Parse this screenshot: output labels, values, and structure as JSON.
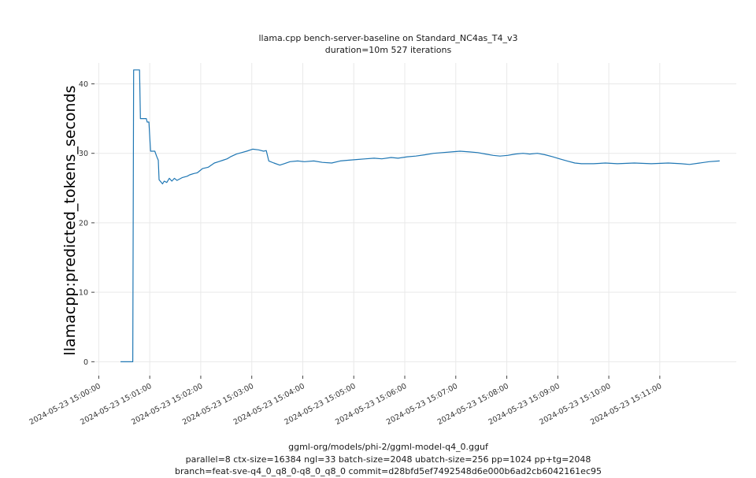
{
  "chart_data": {
    "type": "line",
    "title": "llama.cpp bench-server-baseline on Standard_NC4as_T4_v3",
    "subtitle": "duration=10m 527 iterations",
    "ylabel": "llamacpp:predicted_tokens_seconds",
    "xlabel": "",
    "footnotes": [
      "ggml-org/models/phi-2/ggml-model-q4_0.gguf",
      "parallel=8 ctx-size=16384 ngl=33 batch-size=2048 ubatch-size=256 pp=1024 pp+tg=2048",
      "branch=feat-sve-q4_0_q8_0-q8_0_q8_0 commit=d28bfd5ef7492548d6e000b6ad2cb6042161ec95"
    ],
    "grid": true,
    "legend": null,
    "line_color": "#1f77b4",
    "grid_color": "#e9e9e9",
    "tick_color": "#444444",
    "text_color": "#333333",
    "x_unit": "seconds after 2024-05-23 15:00:00",
    "xlim": [
      -5,
      750
    ],
    "ylim": [
      -2,
      43
    ],
    "y_ticks": [
      0,
      10,
      20,
      30,
      40
    ],
    "x_ticks": [
      {
        "seconds": 0,
        "label": "2024-05-23 15:00:00"
      },
      {
        "seconds": 60,
        "label": "2024-05-23 15:01:00"
      },
      {
        "seconds": 120,
        "label": "2024-05-23 15:02:00"
      },
      {
        "seconds": 180,
        "label": "2024-05-23 15:03:00"
      },
      {
        "seconds": 240,
        "label": "2024-05-23 15:04:00"
      },
      {
        "seconds": 300,
        "label": "2024-05-23 15:05:00"
      },
      {
        "seconds": 360,
        "label": "2024-05-23 15:06:00"
      },
      {
        "seconds": 420,
        "label": "2024-05-23 15:07:00"
      },
      {
        "seconds": 480,
        "label": "2024-05-23 15:08:00"
      },
      {
        "seconds": 540,
        "label": "2024-05-23 15:09:00"
      },
      {
        "seconds": 600,
        "label": "2024-05-23 15:10:00"
      },
      {
        "seconds": 660,
        "label": "2024-05-23 15:11:00"
      }
    ],
    "series": [
      {
        "name": "llamacpp:predicted_tokens_seconds",
        "points": [
          [
            26,
            0
          ],
          [
            40,
            0
          ],
          [
            41,
            42
          ],
          [
            48,
            42
          ],
          [
            49,
            35
          ],
          [
            56,
            35
          ],
          [
            57,
            34.5
          ],
          [
            59,
            34.5
          ],
          [
            61,
            30.3
          ],
          [
            66,
            30.3
          ],
          [
            68,
            29.6
          ],
          [
            70,
            29
          ],
          [
            71,
            26.2
          ],
          [
            75,
            25.6
          ],
          [
            77,
            26
          ],
          [
            80,
            25.8
          ],
          [
            83,
            26.4
          ],
          [
            86,
            26
          ],
          [
            89,
            26.4
          ],
          [
            92,
            26.1
          ],
          [
            98,
            26.5
          ],
          [
            104,
            26.7
          ],
          [
            107,
            26.9
          ],
          [
            112,
            27.1
          ],
          [
            116,
            27.2
          ],
          [
            122,
            27.8
          ],
          [
            129,
            28
          ],
          [
            136,
            28.6
          ],
          [
            141,
            28.8
          ],
          [
            146,
            29
          ],
          [
            151,
            29.2
          ],
          [
            155,
            29.5
          ],
          [
            162,
            29.9
          ],
          [
            168,
            30.1
          ],
          [
            174,
            30.3
          ],
          [
            181,
            30.6
          ],
          [
            188,
            30.5
          ],
          [
            194,
            30.3
          ],
          [
            197,
            30.4
          ],
          [
            200,
            28.9
          ],
          [
            206,
            28.6
          ],
          [
            213,
            28.3
          ],
          [
            218,
            28.5
          ],
          [
            225,
            28.8
          ],
          [
            234,
            28.9
          ],
          [
            242,
            28.8
          ],
          [
            253,
            28.9
          ],
          [
            263,
            28.7
          ],
          [
            274,
            28.6
          ],
          [
            284,
            28.9
          ],
          [
            293,
            29
          ],
          [
            303,
            29.1
          ],
          [
            314,
            29.2
          ],
          [
            324,
            29.3
          ],
          [
            333,
            29.2
          ],
          [
            344,
            29.4
          ],
          [
            352,
            29.3
          ],
          [
            363,
            29.5
          ],
          [
            373,
            29.6
          ],
          [
            384,
            29.8
          ],
          [
            394,
            30
          ],
          [
            404,
            30.1
          ],
          [
            415,
            30.2
          ],
          [
            425,
            30.3
          ],
          [
            436,
            30.2
          ],
          [
            446,
            30.1
          ],
          [
            455,
            29.9
          ],
          [
            464,
            29.7
          ],
          [
            472,
            29.6
          ],
          [
            481,
            29.7
          ],
          [
            490,
            29.9
          ],
          [
            499,
            30
          ],
          [
            507,
            29.9
          ],
          [
            516,
            30
          ],
          [
            525,
            29.8
          ],
          [
            534,
            29.5
          ],
          [
            542,
            29.2
          ],
          [
            551,
            28.9
          ],
          [
            560,
            28.6
          ],
          [
            568,
            28.5
          ],
          [
            582,
            28.5
          ],
          [
            596,
            28.6
          ],
          [
            610,
            28.5
          ],
          [
            630,
            28.6
          ],
          [
            650,
            28.5
          ],
          [
            670,
            28.6
          ],
          [
            685,
            28.5
          ],
          [
            695,
            28.4
          ],
          [
            707,
            28.6
          ],
          [
            718,
            28.8
          ],
          [
            730,
            28.9
          ]
        ]
      }
    ]
  }
}
